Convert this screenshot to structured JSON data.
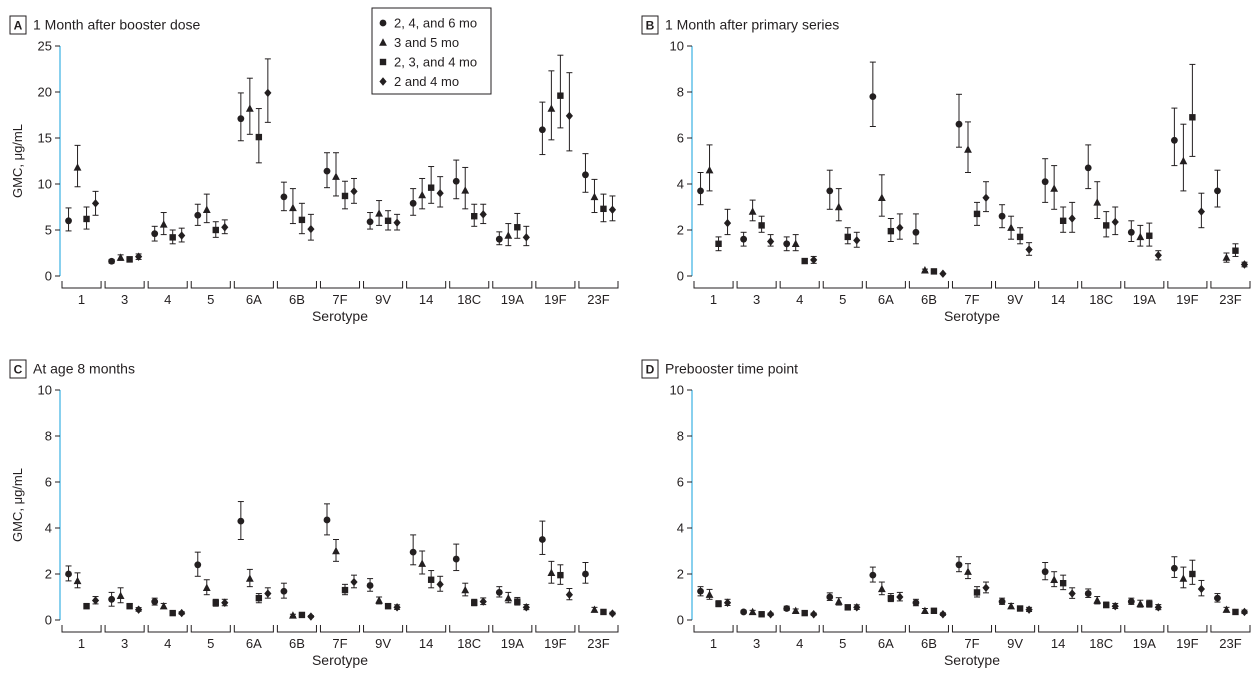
{
  "colors": {
    "axis": "#231f20",
    "left_axis": "#3ab0e2",
    "marker": "#231f20"
  },
  "legend": {
    "entries": [
      {
        "label": "2, 4, and 6 mo",
        "marker": "circle"
      },
      {
        "label": "3 and 5 mo",
        "marker": "triangle"
      },
      {
        "label": "2, 3, and 4 mo",
        "marker": "square"
      },
      {
        "label": "2 and 4 mo",
        "marker": "diamond"
      }
    ]
  },
  "chart_data": [
    {
      "type": "scatter",
      "panel": "A",
      "title": "1 Month after booster dose",
      "xlabel": "Serotype",
      "ylabel": "GMC, μg/mL",
      "ylim": [
        0,
        25
      ],
      "yticks": [
        0,
        5,
        10,
        15,
        20,
        25
      ],
      "categories": [
        "1",
        "3",
        "4",
        "5",
        "6A",
        "6B",
        "7F",
        "9V",
        "14",
        "18C",
        "19A",
        "19F",
        "23F"
      ],
      "series": [
        {
          "name": "2, 4, and 6 mo",
          "marker": "circle",
          "values": [
            6.0,
            1.6,
            4.6,
            6.6,
            17.1,
            8.6,
            11.4,
            5.9,
            7.9,
            10.3,
            4.0,
            15.9,
            11.0
          ],
          "lower": [
            4.9,
            1.4,
            3.8,
            5.5,
            14.7,
            7.1,
            9.6,
            5.1,
            6.6,
            8.4,
            3.4,
            13.2,
            9.1
          ],
          "upper": [
            7.4,
            1.8,
            5.4,
            7.8,
            19.9,
            10.2,
            13.4,
            6.9,
            9.5,
            12.6,
            4.8,
            18.9,
            13.3
          ]
        },
        {
          "name": "3 and 5 mo",
          "marker": "triangle",
          "values": [
            11.8,
            2.0,
            5.6,
            7.2,
            18.2,
            7.4,
            10.8,
            6.8,
            8.8,
            9.3,
            4.4,
            18.2,
            8.6
          ],
          "lower": [
            9.7,
            1.7,
            4.5,
            5.8,
            15.4,
            5.7,
            8.7,
            5.5,
            7.3,
            7.3,
            3.3,
            14.8,
            6.9
          ],
          "upper": [
            14.2,
            2.3,
            6.9,
            8.9,
            21.5,
            9.5,
            13.4,
            8.2,
            10.6,
            11.8,
            5.7,
            22.3,
            10.5
          ]
        },
        {
          "name": "2, 3, and 4 mo",
          "marker": "square",
          "values": [
            6.2,
            1.8,
            4.2,
            5.0,
            15.1,
            6.1,
            8.7,
            6.0,
            9.6,
            6.5,
            5.3,
            19.6,
            7.3
          ],
          "lower": [
            5.1,
            1.6,
            3.5,
            4.2,
            12.3,
            4.6,
            7.3,
            5.0,
            7.9,
            5.4,
            4.1,
            16.1,
            5.9
          ],
          "upper": [
            7.5,
            2.1,
            5.0,
            5.9,
            18.2,
            7.9,
            10.3,
            7.1,
            11.9,
            7.8,
            6.8,
            24.0,
            8.9
          ]
        },
        {
          "name": "2 and 4 mo",
          "marker": "diamond",
          "values": [
            7.9,
            2.1,
            4.4,
            5.3,
            19.9,
            5.1,
            9.2,
            5.8,
            9.0,
            6.7,
            4.2,
            17.4,
            7.2
          ],
          "lower": [
            6.6,
            1.8,
            3.7,
            4.6,
            16.7,
            3.9,
            7.9,
            5.0,
            7.5,
            5.7,
            3.3,
            13.6,
            6.0
          ],
          "upper": [
            9.2,
            2.4,
            5.2,
            6.1,
            23.6,
            6.7,
            10.6,
            6.7,
            10.8,
            7.8,
            5.4,
            22.1,
            8.7
          ]
        }
      ]
    },
    {
      "type": "scatter",
      "panel": "B",
      "title": "1 Month after primary series",
      "xlabel": "Serotype",
      "ylabel": "",
      "ylim": [
        0,
        10
      ],
      "yticks": [
        0,
        2,
        4,
        6,
        8,
        10
      ],
      "categories": [
        "1",
        "3",
        "4",
        "5",
        "6A",
        "6B",
        "7F",
        "9V",
        "14",
        "18C",
        "19A",
        "19F",
        "23F"
      ],
      "series": [
        {
          "name": "2, 4, and 6 mo",
          "marker": "circle",
          "values": [
            3.7,
            1.6,
            1.4,
            3.7,
            7.8,
            1.9,
            6.6,
            2.6,
            4.1,
            4.7,
            1.9,
            5.9,
            3.7
          ],
          "lower": [
            3.1,
            1.3,
            1.1,
            2.9,
            6.5,
            1.4,
            5.6,
            2.1,
            3.2,
            3.8,
            1.5,
            4.8,
            3.0
          ],
          "upper": [
            4.5,
            1.9,
            1.7,
            4.6,
            9.3,
            2.7,
            7.9,
            3.1,
            5.1,
            5.7,
            2.4,
            7.3,
            4.6
          ]
        },
        {
          "name": "3 and 5 mo",
          "marker": "triangle",
          "values": [
            4.6,
            2.8,
            1.4,
            3.0,
            3.4,
            0.25,
            5.5,
            2.1,
            3.8,
            3.2,
            1.7,
            5.0,
            0.8
          ],
          "lower": [
            3.7,
            2.4,
            1.1,
            2.4,
            2.6,
            0.2,
            4.5,
            1.6,
            2.9,
            2.5,
            1.3,
            3.7,
            0.6
          ],
          "upper": [
            5.7,
            3.3,
            1.8,
            3.8,
            4.4,
            0.3,
            6.7,
            2.6,
            4.8,
            4.1,
            2.2,
            6.6,
            1.0
          ]
        },
        {
          "name": "2, 3, and 4 mo",
          "marker": "square",
          "values": [
            1.4,
            2.2,
            0.65,
            1.7,
            1.95,
            0.2,
            2.7,
            1.7,
            2.4,
            2.2,
            1.75,
            6.9,
            1.1
          ],
          "lower": [
            1.1,
            1.9,
            0.55,
            1.4,
            1.5,
            0.17,
            2.2,
            1.4,
            1.9,
            1.7,
            1.3,
            5.2,
            0.85
          ],
          "upper": [
            1.7,
            2.6,
            0.75,
            2.1,
            2.5,
            0.24,
            3.2,
            2.1,
            3.0,
            2.8,
            2.3,
            9.2,
            1.4
          ]
        },
        {
          "name": "2 and 4 mo",
          "marker": "diamond",
          "values": [
            2.3,
            1.5,
            0.7,
            1.55,
            2.1,
            0.1,
            3.4,
            1.15,
            2.5,
            2.35,
            0.9,
            2.8,
            0.5
          ],
          "lower": [
            1.8,
            1.3,
            0.55,
            1.25,
            1.6,
            0.08,
            2.8,
            0.9,
            1.9,
            1.8,
            0.7,
            2.1,
            0.4
          ],
          "upper": [
            2.9,
            1.8,
            0.85,
            1.9,
            2.7,
            0.12,
            4.1,
            1.45,
            3.2,
            3.0,
            1.1,
            3.6,
            0.6
          ]
        }
      ]
    },
    {
      "type": "scatter",
      "panel": "C",
      "title": "At age 8 months",
      "xlabel": "Serotype",
      "ylabel": "GMC, μg/mL",
      "ylim": [
        0,
        10
      ],
      "yticks": [
        0,
        2,
        4,
        6,
        8,
        10
      ],
      "categories": [
        "1",
        "3",
        "4",
        "5",
        "6A",
        "6B",
        "7F",
        "9V",
        "14",
        "18C",
        "19A",
        "19F",
        "23F"
      ],
      "series": [
        {
          "name": "2, 4, and 6 mo",
          "marker": "circle",
          "values": [
            2.0,
            0.9,
            0.8,
            2.4,
            4.3,
            1.25,
            4.35,
            1.5,
            2.95,
            2.65,
            1.2,
            3.5,
            2.0
          ],
          "lower": [
            1.7,
            0.6,
            0.65,
            1.9,
            3.5,
            0.95,
            3.7,
            1.25,
            2.4,
            2.15,
            1.0,
            2.85,
            1.6
          ],
          "upper": [
            2.35,
            1.2,
            0.95,
            2.95,
            5.15,
            1.6,
            5.05,
            1.8,
            3.7,
            3.3,
            1.45,
            4.3,
            2.5
          ]
        },
        {
          "name": "3 and 5 mo",
          "marker": "triangle",
          "values": [
            1.7,
            1.05,
            0.6,
            1.4,
            1.8,
            0.2,
            3.0,
            0.85,
            2.45,
            1.3,
            0.95,
            2.05,
            0.45
          ],
          "lower": [
            1.4,
            0.75,
            0.5,
            1.1,
            1.45,
            0.16,
            2.55,
            0.7,
            2.0,
            1.05,
            0.75,
            1.6,
            0.36
          ],
          "upper": [
            2.05,
            1.4,
            0.72,
            1.75,
            2.2,
            0.25,
            3.5,
            1.0,
            3.0,
            1.6,
            1.2,
            2.55,
            0.55
          ]
        },
        {
          "name": "2, 3, and 4 mo",
          "marker": "square",
          "values": [
            0.6,
            0.6,
            0.3,
            0.75,
            0.95,
            0.22,
            1.3,
            0.6,
            1.75,
            0.75,
            0.8,
            1.95,
            0.35
          ],
          "lower": [
            0.5,
            0.5,
            0.25,
            0.6,
            0.75,
            0.18,
            1.1,
            0.5,
            1.4,
            0.62,
            0.65,
            1.55,
            0.28
          ],
          "upper": [
            0.72,
            0.72,
            0.36,
            0.9,
            1.15,
            0.27,
            1.55,
            0.72,
            2.15,
            0.9,
            0.98,
            2.4,
            0.42
          ]
        },
        {
          "name": "2 and 4 mo",
          "marker": "diamond",
          "values": [
            0.85,
            0.45,
            0.3,
            0.75,
            1.15,
            0.15,
            1.65,
            0.55,
            1.55,
            0.8,
            0.55,
            1.1,
            0.28
          ],
          "lower": [
            0.7,
            0.38,
            0.25,
            0.62,
            0.95,
            0.12,
            1.4,
            0.46,
            1.25,
            0.67,
            0.45,
            0.88,
            0.23
          ],
          "upper": [
            1.02,
            0.54,
            0.36,
            0.9,
            1.4,
            0.19,
            1.95,
            0.66,
            1.9,
            0.96,
            0.67,
            1.37,
            0.34
          ]
        }
      ]
    },
    {
      "type": "scatter",
      "panel": "D",
      "title": "Prebooster time point",
      "xlabel": "Serotype",
      "ylabel": "",
      "ylim": [
        0,
        10
      ],
      "yticks": [
        0,
        2,
        4,
        6,
        8,
        10
      ],
      "categories": [
        "1",
        "3",
        "4",
        "5",
        "6A",
        "6B",
        "7F",
        "9V",
        "14",
        "18C",
        "19A",
        "19F",
        "23F"
      ],
      "series": [
        {
          "name": "2, 4, and 6 mo",
          "marker": "circle",
          "values": [
            1.25,
            0.35,
            0.5,
            1.0,
            1.95,
            0.75,
            2.4,
            0.8,
            2.1,
            1.15,
            0.8,
            2.25,
            0.95
          ],
          "lower": [
            1.05,
            0.3,
            0.42,
            0.85,
            1.65,
            0.62,
            2.1,
            0.68,
            1.75,
            0.98,
            0.68,
            1.85,
            0.78
          ],
          "upper": [
            1.45,
            0.42,
            0.6,
            1.18,
            2.3,
            0.9,
            2.75,
            0.95,
            2.5,
            1.35,
            0.95,
            2.75,
            1.15
          ]
        },
        {
          "name": "3 and 5 mo",
          "marker": "triangle",
          "values": [
            1.1,
            0.35,
            0.4,
            0.8,
            1.35,
            0.4,
            2.1,
            0.6,
            1.75,
            0.85,
            0.7,
            1.8,
            0.45
          ],
          "lower": [
            0.9,
            0.28,
            0.33,
            0.65,
            1.1,
            0.32,
            1.8,
            0.5,
            1.45,
            0.7,
            0.56,
            1.4,
            0.36
          ],
          "upper": [
            1.33,
            0.42,
            0.48,
            0.97,
            1.65,
            0.5,
            2.45,
            0.72,
            2.1,
            1.02,
            0.86,
            2.3,
            0.55
          ]
        },
        {
          "name": "2, 3, and 4 mo",
          "marker": "square",
          "values": [
            0.7,
            0.25,
            0.3,
            0.55,
            0.95,
            0.4,
            1.2,
            0.5,
            1.6,
            0.65,
            0.7,
            2.0,
            0.35
          ],
          "lower": [
            0.58,
            0.2,
            0.24,
            0.46,
            0.8,
            0.32,
            1.0,
            0.42,
            1.32,
            0.54,
            0.56,
            1.55,
            0.28
          ],
          "upper": [
            0.84,
            0.3,
            0.36,
            0.66,
            1.15,
            0.5,
            1.45,
            0.6,
            1.95,
            0.78,
            0.86,
            2.6,
            0.43
          ]
        },
        {
          "name": "2 and 4 mo",
          "marker": "diamond",
          "values": [
            0.75,
            0.25,
            0.25,
            0.55,
            1.0,
            0.25,
            1.4,
            0.45,
            1.15,
            0.6,
            0.55,
            1.35,
            0.35
          ],
          "lower": [
            0.63,
            0.2,
            0.2,
            0.46,
            0.83,
            0.2,
            1.18,
            0.37,
            0.94,
            0.5,
            0.45,
            1.05,
            0.28
          ],
          "upper": [
            0.9,
            0.3,
            0.3,
            0.66,
            1.2,
            0.31,
            1.65,
            0.55,
            1.4,
            0.72,
            0.67,
            1.72,
            0.43
          ]
        }
      ]
    }
  ]
}
